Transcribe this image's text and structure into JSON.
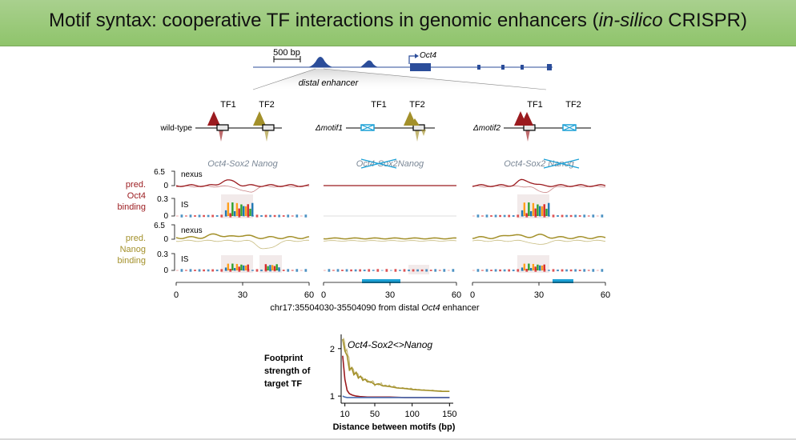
{
  "slide": {
    "title_pre": "Motif syntax: cooperative TF interactions in genomic enhancers (",
    "title_italic": "in-silico",
    "title_post": " CRISPR)"
  },
  "locus": {
    "scale_bar": "500 bp",
    "gene": "Oct4",
    "enhancer": "distal enhancer"
  },
  "panels": [
    {
      "label": "wild-type",
      "tf1": "TF1",
      "tf2": "TF2",
      "header": "Oct4-Sox2 Nanog",
      "struck": ""
    },
    {
      "label": "Δmotif1",
      "tf1": "TF1",
      "tf2": "TF2",
      "header": "Oct4-Sox2Nanog",
      "struck": "Oct4-Sox2"
    },
    {
      "label": "Δmotif2",
      "tf1": "TF1",
      "tf2": "TF2",
      "header": "Oct4-Sox2 Nanog",
      "struck": "Nanog"
    }
  ],
  "tracks": {
    "oct4": {
      "name_l1": "pred.",
      "name_l2": "Oct4",
      "name_l3": "binding",
      "color": "#9b1b1f"
    },
    "nanog": {
      "name_l1": "pred.",
      "name_l2": "Nanog",
      "name_l3": "binding",
      "color": "#a3902a"
    },
    "nexus": "nexus",
    "is": "IS",
    "nexus_max": "6.5",
    "nexus_min": "0",
    "is_max": "0.3",
    "is_min": "0"
  },
  "x_axis": {
    "ticks": [
      "0",
      "30",
      "60"
    ],
    "label_pre": "chr17:35504030-35504090 from distal ",
    "label_italic": "Oct4",
    "label_post": " enhancer"
  },
  "chart_data": {
    "type": "line",
    "title": "Oct4-Sox2<>Nanog",
    "ylabel_l1": "Footprint",
    "ylabel_l2": "strength of",
    "ylabel_l3": "target TF",
    "xlabel": "Distance between motifs (bp)",
    "xticks": [
      "10",
      "50",
      "100",
      "150"
    ],
    "yticks": [
      "1",
      "2"
    ],
    "xlim": [
      5,
      155
    ],
    "ylim": [
      0.85,
      2.3
    ],
    "series": [
      {
        "color": "#a3902a",
        "x": [
          7,
          10,
          13,
          16,
          19,
          22,
          25,
          28,
          31,
          34,
          37,
          40,
          45,
          50,
          55,
          60,
          70,
          80,
          90,
          100,
          110,
          120,
          130,
          140,
          150
        ],
        "y": [
          2.2,
          1.95,
          1.85,
          1.55,
          1.6,
          1.45,
          1.5,
          1.38,
          1.42,
          1.33,
          1.36,
          1.3,
          1.3,
          1.24,
          1.26,
          1.22,
          1.2,
          1.17,
          1.16,
          1.14,
          1.13,
          1.12,
          1.11,
          1.1,
          1.1
        ]
      },
      {
        "color": "#9b1b1f",
        "x": [
          7,
          10,
          13,
          16,
          20,
          25,
          30,
          40,
          50,
          70,
          90,
          110,
          130,
          150
        ],
        "y": [
          1.85,
          1.35,
          1.12,
          1.05,
          1.02,
          1.0,
          0.99,
          0.98,
          0.98,
          0.98,
          0.97,
          0.97,
          0.97,
          0.97
        ]
      },
      {
        "color": "#4a6fb3",
        "x": [
          7,
          10,
          13,
          16,
          20,
          25,
          30,
          40,
          50,
          70,
          90,
          110,
          130,
          150
        ],
        "y": [
          1.0,
          0.98,
          0.97,
          0.97,
          0.97,
          0.97,
          0.97,
          0.97,
          0.97,
          0.97,
          0.97,
          0.97,
          0.97,
          0.97
        ]
      }
    ]
  }
}
